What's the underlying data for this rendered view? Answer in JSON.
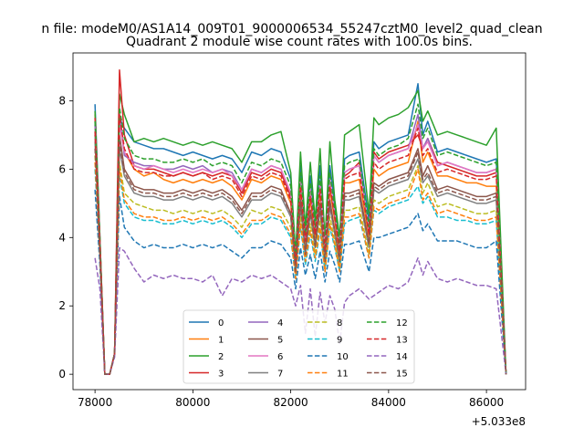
{
  "chart_data": {
    "type": "line",
    "title_line1": "n file: modeM0/AS1A14_009T01_9000006534_55247cztM0_level2_quad_clean",
    "title_line2": "Quadrant 2 module wise count rates with 100.0s bins.",
    "xlabel": "",
    "ylabel": "",
    "x_offset_label": "+5.033e8",
    "xlim": [
      77550,
      86800
    ],
    "ylim": [
      -0.45,
      9.4
    ],
    "xticks": [
      78000,
      80000,
      82000,
      84000,
      86000
    ],
    "xtick_labels": [
      "78000",
      "80000",
      "82000",
      "84000",
      "86000"
    ],
    "yticks": [
      0,
      2,
      4,
      6,
      8
    ],
    "ytick_labels": [
      "0",
      "2",
      "4",
      "6",
      "8"
    ],
    "grid": false,
    "legend_placement": "lower-center",
    "legend_columns": 4,
    "x": [
      78000,
      78100,
      78200,
      78300,
      78400,
      78500,
      78600,
      78800,
      79000,
      79200,
      79400,
      79600,
      79800,
      80000,
      80200,
      80400,
      80600,
      80800,
      81000,
      81200,
      81400,
      81600,
      81800,
      82000,
      82100,
      82200,
      82300,
      82400,
      82500,
      82600,
      82700,
      82800,
      82900,
      83000,
      83100,
      83200,
      83400,
      83600,
      83700,
      83800,
      84000,
      84200,
      84400,
      84600,
      84700,
      84800,
      85000,
      85200,
      85400,
      85600,
      85800,
      86000,
      86200,
      86400
    ],
    "series": [
      {
        "name": "0",
        "color": "#1f77b4",
        "dash": "solid",
        "values": [
          7.9,
          4.0,
          0.0,
          0.0,
          0.6,
          7.5,
          7.2,
          6.8,
          6.7,
          6.6,
          6.6,
          6.5,
          6.4,
          6.5,
          6.4,
          6.3,
          6.4,
          6.3,
          5.9,
          6.5,
          6.4,
          6.6,
          6.5,
          5.7,
          3.5,
          6.1,
          4.2,
          5.8,
          4.4,
          6.1,
          3.8,
          6.1,
          5.0,
          3.8,
          6.3,
          6.4,
          6.5,
          4.5,
          6.8,
          6.6,
          6.8,
          6.9,
          7.0,
          8.5,
          7.0,
          7.4,
          6.5,
          6.6,
          6.5,
          6.4,
          6.3,
          6.2,
          6.3,
          0.0
        ]
      },
      {
        "name": "1",
        "color": "#ff7f0e",
        "dash": "solid",
        "values": [
          7.6,
          3.9,
          0.0,
          0.0,
          0.6,
          7.4,
          6.5,
          6.0,
          5.8,
          5.9,
          5.7,
          5.6,
          5.7,
          5.6,
          5.7,
          5.6,
          5.7,
          5.5,
          5.1,
          5.7,
          5.6,
          5.8,
          5.7,
          5.0,
          3.2,
          5.4,
          3.8,
          5.1,
          4.0,
          5.3,
          3.5,
          5.4,
          4.5,
          3.5,
          5.6,
          5.6,
          5.7,
          4.0,
          6.0,
          5.8,
          6.0,
          6.1,
          6.2,
          7.4,
          6.2,
          6.5,
          5.8,
          5.8,
          5.7,
          5.6,
          5.6,
          5.5,
          5.5,
          0.0
        ]
      },
      {
        "name": "2",
        "color": "#2ca02c",
        "dash": "solid",
        "values": [
          7.7,
          4.0,
          0.0,
          0.0,
          0.6,
          8.2,
          7.6,
          6.8,
          6.9,
          6.8,
          6.9,
          6.8,
          6.7,
          6.8,
          6.7,
          6.8,
          6.7,
          6.6,
          6.2,
          6.8,
          6.8,
          7.0,
          7.1,
          5.9,
          3.5,
          6.5,
          4.3,
          6.2,
          4.5,
          6.6,
          3.9,
          6.8,
          5.1,
          4.0,
          7.0,
          7.1,
          7.3,
          4.7,
          7.5,
          7.3,
          7.5,
          7.6,
          7.8,
          8.3,
          7.4,
          7.7,
          7.0,
          7.1,
          7.0,
          6.9,
          6.8,
          6.7,
          7.2,
          0.0
        ]
      },
      {
        "name": "3",
        "color": "#d62728",
        "dash": "solid",
        "values": [
          7.5,
          3.9,
          0.0,
          0.0,
          0.6,
          8.9,
          7.0,
          6.1,
          6.0,
          6.0,
          5.9,
          5.8,
          5.9,
          5.8,
          5.9,
          5.8,
          5.9,
          5.8,
          5.3,
          5.9,
          5.8,
          6.0,
          5.9,
          5.2,
          3.3,
          5.6,
          3.9,
          5.3,
          4.1,
          5.5,
          3.6,
          5.6,
          4.6,
          3.6,
          5.8,
          5.9,
          6.2,
          4.1,
          6.5,
          6.3,
          6.5,
          6.6,
          6.7,
          7.0,
          6.6,
          6.9,
          6.2,
          6.1,
          6.0,
          5.9,
          5.8,
          5.8,
          5.9,
          0.0
        ]
      },
      {
        "name": "4",
        "color": "#9467bd",
        "dash": "solid",
        "values": [
          7.3,
          3.8,
          0.0,
          0.0,
          0.6,
          7.6,
          6.4,
          6.2,
          6.1,
          6.1,
          6.0,
          6.0,
          6.1,
          6.0,
          6.1,
          5.9,
          6.0,
          5.9,
          5.4,
          6.0,
          5.9,
          6.1,
          6.0,
          5.3,
          3.3,
          5.7,
          4.0,
          5.4,
          4.2,
          5.6,
          3.7,
          5.7,
          4.7,
          3.7,
          5.9,
          6.0,
          6.1,
          4.2,
          6.4,
          6.2,
          6.4,
          6.5,
          6.6,
          7.6,
          6.6,
          6.9,
          6.1,
          6.2,
          6.1,
          6.0,
          5.9,
          5.9,
          6.0,
          0.0
        ]
      },
      {
        "name": "5",
        "color": "#8c564b",
        "dash": "solid",
        "values": [
          7.0,
          3.7,
          0.0,
          0.0,
          0.6,
          7.0,
          6.0,
          5.5,
          5.4,
          5.4,
          5.3,
          5.3,
          5.4,
          5.3,
          5.4,
          5.3,
          5.4,
          5.2,
          4.8,
          5.3,
          5.3,
          5.5,
          5.4,
          4.7,
          3.0,
          5.1,
          3.6,
          4.8,
          3.8,
          5.0,
          3.3,
          5.1,
          4.2,
          3.3,
          5.3,
          5.3,
          5.4,
          3.8,
          5.6,
          5.5,
          5.7,
          5.8,
          5.9,
          6.6,
          5.8,
          6.1,
          5.4,
          5.5,
          5.4,
          5.3,
          5.2,
          5.2,
          5.3,
          0.0
        ]
      },
      {
        "name": "6",
        "color": "#e377c2",
        "dash": "solid",
        "values": [
          7.2,
          3.8,
          0.0,
          0.0,
          0.6,
          7.3,
          6.5,
          6.1,
          6.0,
          6.1,
          6.0,
          5.9,
          6.0,
          5.9,
          6.0,
          5.9,
          6.0,
          5.8,
          5.4,
          6.0,
          5.9,
          6.1,
          6.0,
          5.3,
          3.3,
          5.7,
          4.0,
          5.4,
          4.2,
          5.6,
          3.7,
          5.7,
          4.7,
          3.7,
          5.9,
          6.0,
          6.1,
          4.2,
          6.4,
          6.2,
          6.4,
          6.5,
          6.6,
          7.3,
          6.6,
          6.8,
          6.1,
          6.2,
          6.1,
          6.0,
          5.9,
          5.9,
          6.0,
          0.0
        ]
      },
      {
        "name": "7",
        "color": "#7f7f7f",
        "dash": "solid",
        "values": [
          6.8,
          3.6,
          0.0,
          0.0,
          0.6,
          6.6,
          5.8,
          5.3,
          5.2,
          5.2,
          5.1,
          5.1,
          5.2,
          5.1,
          5.2,
          5.1,
          5.2,
          5.0,
          4.6,
          5.1,
          5.1,
          5.3,
          5.2,
          4.6,
          3.0,
          4.9,
          3.5,
          4.7,
          3.7,
          4.8,
          3.2,
          4.9,
          4.1,
          3.2,
          5.1,
          5.1,
          5.2,
          3.7,
          5.4,
          5.3,
          5.5,
          5.6,
          5.7,
          6.3,
          5.6,
          5.8,
          5.2,
          5.3,
          5.2,
          5.1,
          5.0,
          5.0,
          5.1,
          0.0
        ]
      },
      {
        "name": "8",
        "color": "#bcbd22",
        "dash": "dashed",
        "values": [
          6.4,
          3.5,
          0.0,
          0.0,
          0.6,
          6.2,
          5.3,
          5.0,
          4.9,
          4.8,
          4.8,
          4.7,
          4.8,
          4.7,
          4.8,
          4.7,
          4.8,
          4.6,
          4.3,
          4.8,
          4.7,
          4.9,
          4.8,
          4.3,
          2.9,
          4.6,
          3.4,
          4.4,
          3.5,
          4.5,
          3.1,
          4.6,
          3.9,
          3.1,
          4.8,
          4.8,
          4.9,
          3.5,
          5.1,
          5.0,
          5.2,
          5.3,
          5.4,
          6.1,
          5.3,
          5.6,
          4.9,
          5.0,
          4.9,
          4.8,
          4.7,
          4.7,
          4.8,
          0.0
        ]
      },
      {
        "name": "9",
        "color": "#17becf",
        "dash": "dashed",
        "values": [
          6.0,
          3.4,
          0.0,
          0.0,
          0.6,
          5.8,
          5.0,
          4.6,
          4.5,
          4.5,
          4.4,
          4.4,
          4.5,
          4.4,
          4.5,
          4.4,
          4.5,
          4.3,
          4.0,
          4.4,
          4.4,
          4.6,
          4.5,
          4.0,
          2.8,
          4.3,
          3.2,
          4.1,
          3.3,
          4.2,
          3.0,
          4.3,
          3.7,
          3.0,
          4.4,
          4.5,
          4.6,
          3.4,
          4.8,
          4.7,
          4.9,
          5.0,
          5.1,
          5.5,
          5.0,
          5.2,
          4.6,
          4.6,
          4.5,
          4.5,
          4.4,
          4.4,
          4.5,
          0.0
        ]
      },
      {
        "name": "10",
        "color": "#1f77b4",
        "dash": "dashed",
        "values": [
          5.4,
          3.2,
          0.0,
          0.0,
          0.6,
          5.2,
          4.3,
          3.9,
          3.7,
          3.8,
          3.7,
          3.7,
          3.8,
          3.7,
          3.8,
          3.7,
          3.8,
          3.6,
          3.4,
          3.7,
          3.7,
          3.9,
          3.8,
          3.4,
          2.5,
          3.7,
          2.9,
          3.5,
          2.8,
          3.6,
          2.7,
          3.6,
          3.2,
          2.7,
          3.8,
          3.8,
          3.9,
          3.0,
          4.0,
          4.0,
          4.1,
          4.2,
          4.3,
          4.7,
          4.2,
          4.4,
          3.9,
          3.9,
          3.9,
          3.8,
          3.7,
          3.7,
          3.9,
          0.0
        ]
      },
      {
        "name": "11",
        "color": "#ff7f0e",
        "dash": "dashed",
        "values": [
          6.2,
          3.5,
          0.0,
          0.0,
          0.6,
          6.0,
          5.1,
          4.7,
          4.6,
          4.6,
          4.5,
          4.5,
          4.6,
          4.5,
          4.6,
          4.5,
          4.6,
          4.4,
          4.1,
          4.5,
          4.5,
          4.7,
          4.6,
          4.1,
          2.8,
          4.4,
          3.3,
          4.2,
          3.4,
          4.3,
          3.0,
          4.4,
          3.8,
          3.0,
          4.6,
          4.6,
          4.7,
          3.4,
          4.9,
          4.8,
          5.0,
          5.1,
          5.2,
          6.0,
          5.1,
          5.3,
          4.7,
          4.8,
          4.7,
          4.6,
          4.5,
          4.5,
          4.6,
          0.0
        ]
      },
      {
        "name": "12",
        "color": "#2ca02c",
        "dash": "dashed",
        "values": [
          7.4,
          3.9,
          0.0,
          0.0,
          0.6,
          7.8,
          6.9,
          6.4,
          6.3,
          6.3,
          6.2,
          6.2,
          6.3,
          6.2,
          6.3,
          6.1,
          6.2,
          6.1,
          5.6,
          6.2,
          6.1,
          6.3,
          6.2,
          5.5,
          3.4,
          5.9,
          4.1,
          5.6,
          4.3,
          5.8,
          3.7,
          5.9,
          4.8,
          3.7,
          6.1,
          6.2,
          6.3,
          4.3,
          6.6,
          6.4,
          6.6,
          6.7,
          6.9,
          7.9,
          6.9,
          7.2,
          6.4,
          6.5,
          6.4,
          6.3,
          6.2,
          6.1,
          6.2,
          0.0
        ]
      },
      {
        "name": "13",
        "color": "#d62728",
        "dash": "dashed",
        "values": [
          7.1,
          3.8,
          0.0,
          0.0,
          0.6,
          7.6,
          6.6,
          6.0,
          5.9,
          5.9,
          5.8,
          5.8,
          5.9,
          5.8,
          5.9,
          5.7,
          5.8,
          5.7,
          5.2,
          5.8,
          5.7,
          5.9,
          5.8,
          5.1,
          3.2,
          5.5,
          3.9,
          5.2,
          4.1,
          5.4,
          3.6,
          5.5,
          4.6,
          3.6,
          5.7,
          5.8,
          5.9,
          4.1,
          6.2,
          6.0,
          6.2,
          6.3,
          6.4,
          7.2,
          6.4,
          6.6,
          5.9,
          6.0,
          5.9,
          5.8,
          5.7,
          5.7,
          5.8,
          0.0
        ]
      },
      {
        "name": "14",
        "color": "#9467bd",
        "dash": "dashed",
        "values": [
          3.4,
          2.5,
          0.0,
          0.0,
          0.5,
          3.7,
          3.6,
          3.1,
          2.7,
          2.9,
          2.8,
          2.9,
          2.8,
          2.8,
          2.7,
          2.9,
          2.3,
          2.8,
          2.7,
          2.9,
          2.8,
          2.9,
          2.7,
          2.5,
          2.0,
          2.6,
          1.2,
          2.5,
          1.1,
          2.4,
          1.5,
          2.3,
          1.9,
          0.9,
          2.1,
          2.3,
          2.5,
          2.2,
          2.3,
          2.4,
          2.6,
          2.5,
          2.7,
          3.4,
          2.9,
          3.3,
          2.8,
          2.7,
          2.8,
          2.7,
          2.6,
          2.6,
          2.5,
          0.0
        ]
      },
      {
        "name": "15",
        "color": "#8c564b",
        "dash": "dashed",
        "values": [
          6.6,
          3.6,
          0.0,
          0.0,
          0.6,
          6.8,
          5.9,
          5.4,
          5.3,
          5.3,
          5.2,
          5.2,
          5.3,
          5.2,
          5.3,
          5.2,
          5.3,
          5.1,
          4.7,
          5.2,
          5.2,
          5.4,
          5.3,
          4.7,
          3.0,
          5.0,
          3.5,
          4.8,
          3.7,
          4.9,
          3.3,
          5.0,
          4.2,
          3.3,
          5.2,
          5.2,
          5.3,
          3.8,
          5.5,
          5.4,
          5.6,
          5.7,
          5.8,
          6.5,
          5.7,
          5.9,
          5.3,
          5.4,
          5.3,
          5.2,
          5.1,
          5.1,
          5.2,
          0.0
        ]
      }
    ]
  }
}
